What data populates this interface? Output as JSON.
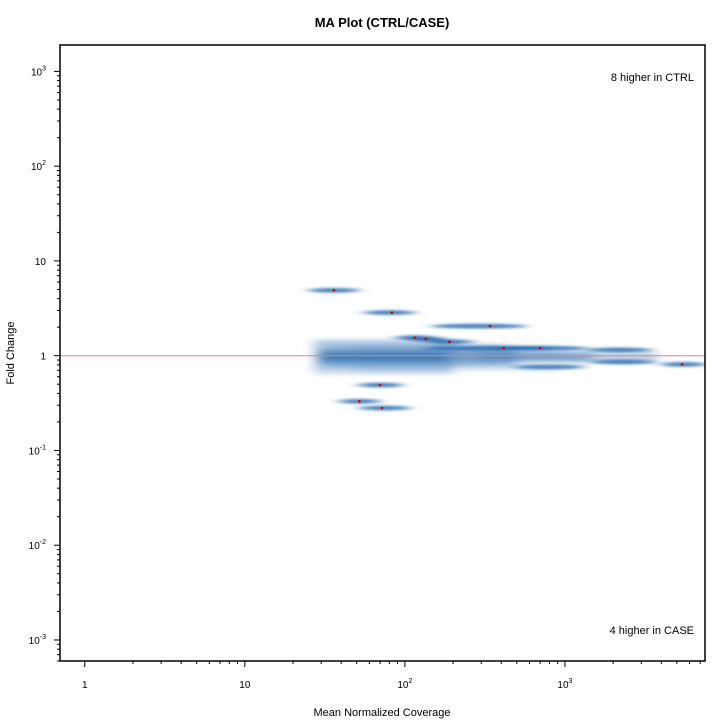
{
  "chart_data": {
    "type": "scatter",
    "title": "MA Plot (CTRL/CASE)",
    "xlabel": "Mean Normalized Coverage",
    "ylabel": "Fold Change",
    "x_scale": "log10",
    "y_scale": "log10",
    "xlim": [
      0.7,
      7500
    ],
    "ylim": [
      0.0006,
      1900
    ],
    "x_ticks": [
      {
        "value": 1,
        "base": "1",
        "exp": ""
      },
      {
        "value": 10,
        "base": "10",
        "exp": ""
      },
      {
        "value": 100,
        "base": "10",
        "exp": "2"
      },
      {
        "value": 1000,
        "base": "10",
        "exp": "3"
      }
    ],
    "y_ticks": [
      {
        "value": 0.001,
        "base": "10",
        "exp": "-3"
      },
      {
        "value": 0.01,
        "base": "10",
        "exp": "-2"
      },
      {
        "value": 0.1,
        "base": "10",
        "exp": "-1"
      },
      {
        "value": 1,
        "base": "1",
        "exp": ""
      },
      {
        "value": 10,
        "base": "10",
        "exp": ""
      },
      {
        "value": 100,
        "base": "10",
        "exp": "2"
      },
      {
        "value": 1000,
        "base": "10",
        "exp": "3"
      }
    ],
    "reference_line": {
      "y": 1,
      "color": "#f08080"
    },
    "annotations": {
      "top_right": "8 higher in CTRL",
      "bottom_right": "4 higher in CASE"
    },
    "density_color": "#2166ac",
    "highlight_color": "#cc0000",
    "density_band": {
      "x_range": [
        27,
        7000
      ],
      "y_center": 1.0
    },
    "density_blobs": [
      {
        "x": 36,
        "y": 4.9,
        "xw": 0.16,
        "yw": 0.01
      },
      {
        "x": 80,
        "y": 2.85,
        "xw": 0.16,
        "yw": 0.01
      },
      {
        "x": 115,
        "y": 1.55,
        "xw": 0.12,
        "yw": 0.01
      },
      {
        "x": 135,
        "y": 1.5,
        "xw": 0.12,
        "yw": 0.01
      },
      {
        "x": 190,
        "y": 1.4,
        "xw": 0.14,
        "yw": 0.01
      },
      {
        "x": 290,
        "y": 2.05,
        "xw": 0.3,
        "yw": 0.01
      },
      {
        "x": 330,
        "y": 1.2,
        "xw": 0.4,
        "yw": 0.014
      },
      {
        "x": 700,
        "y": 1.2,
        "xw": 0.3,
        "yw": 0.012
      },
      {
        "x": 2200,
        "y": 1.15,
        "xw": 0.2,
        "yw": 0.01
      },
      {
        "x": 2300,
        "y": 0.86,
        "xw": 0.2,
        "yw": 0.01
      },
      {
        "x": 800,
        "y": 0.76,
        "xw": 0.22,
        "yw": 0.01
      },
      {
        "x": 5500,
        "y": 0.81,
        "xw": 0.14,
        "yw": 0.01
      },
      {
        "x": 70,
        "y": 0.49,
        "xw": 0.14,
        "yw": 0.01
      },
      {
        "x": 52,
        "y": 0.33,
        "xw": 0.13,
        "yw": 0.01
      },
      {
        "x": 75,
        "y": 0.28,
        "xw": 0.16,
        "yw": 0.01
      }
    ],
    "highlighted_points": [
      {
        "x": 36,
        "y": 4.9
      },
      {
        "x": 83,
        "y": 2.85
      },
      {
        "x": 115,
        "y": 1.55
      },
      {
        "x": 135,
        "y": 1.5
      },
      {
        "x": 190,
        "y": 1.4
      },
      {
        "x": 340,
        "y": 2.05
      },
      {
        "x": 415,
        "y": 1.2
      },
      {
        "x": 700,
        "y": 1.2
      },
      {
        "x": 5400,
        "y": 0.81
      },
      {
        "x": 70,
        "y": 0.49
      },
      {
        "x": 52,
        "y": 0.33
      },
      {
        "x": 72,
        "y": 0.28
      }
    ]
  }
}
